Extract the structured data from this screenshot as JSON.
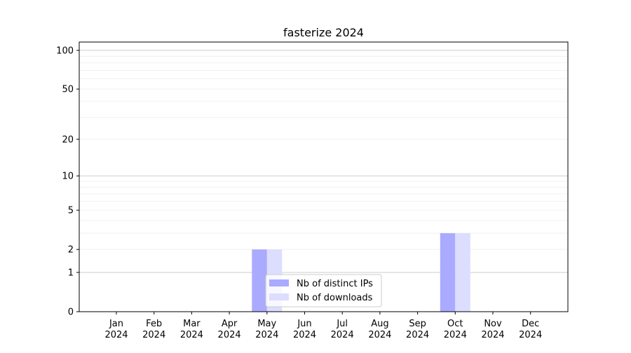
{
  "chart_data": {
    "type": "bar",
    "title": "fasterize 2024",
    "xlabel": "",
    "ylabel": "",
    "y_scale": "log(1+y)",
    "ylim": [
      0,
      116
    ],
    "yticks": [
      0,
      1,
      2,
      5,
      10,
      20,
      50,
      100
    ],
    "categories": [
      "Jan\n2024",
      "Feb\n2024",
      "Mar\n2024",
      "Apr\n2024",
      "May\n2024",
      "Jun\n2024",
      "Jul\n2024",
      "Aug\n2024",
      "Sep\n2024",
      "Oct\n2024",
      "Nov\n2024",
      "Dec\n2024"
    ],
    "series": [
      {
        "name": "Nb of distinct IPs",
        "color": "#aaaaff",
        "values": [
          0,
          0,
          0,
          0,
          2,
          0,
          0,
          0,
          0,
          3,
          0,
          0
        ]
      },
      {
        "name": "Nb of downloads",
        "color": "#ddddff",
        "values": [
          0,
          0,
          0,
          0,
          2,
          0,
          0,
          0,
          0,
          3,
          0,
          0
        ]
      }
    ],
    "grid": {
      "major": true,
      "minor": true,
      "major_color": "#cccccc",
      "minor_color": "#eeeeee"
    },
    "legend_placement": "lower-center"
  }
}
